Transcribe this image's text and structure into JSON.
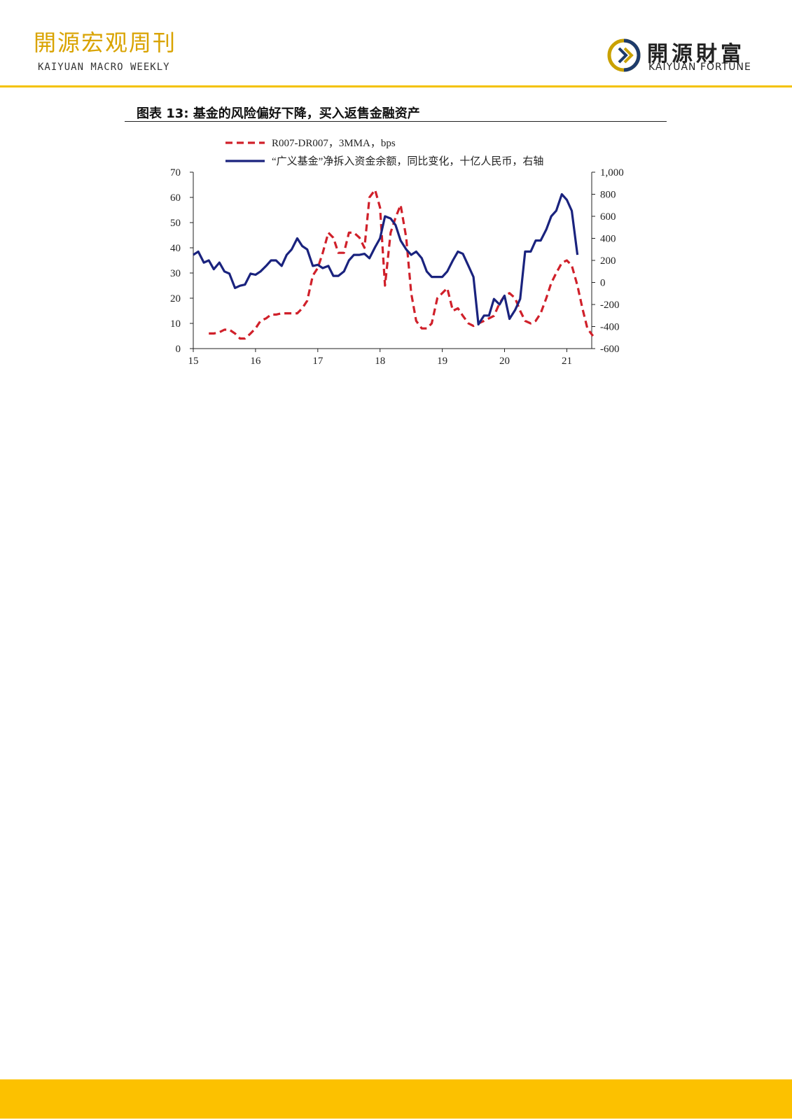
{
  "header": {
    "title": "開源宏观周刊",
    "subtitle": "KAIYUAN MACRO WEEKLY"
  },
  "logo": {
    "name_cn": "開源財富",
    "name_en": "KAIYUAN FORTUNE"
  },
  "figure": {
    "title": "图表 13: 基金的风险偏好下降，买入返售金融资产"
  },
  "colors": {
    "accent": "#f4c200",
    "footer": "#fcc100",
    "title_gold": "#d9a300",
    "series_red": "#d0202a",
    "series_navy": "#1a237e"
  },
  "chart_data": {
    "type": "line",
    "x_ticks": [
      "15",
      "16",
      "17",
      "18",
      "19",
      "20",
      "21"
    ],
    "y_left_ticks": [
      "70",
      "60",
      "50",
      "40",
      "30",
      "20",
      "10",
      "0"
    ],
    "y_right_ticks": [
      "1,000",
      "800",
      "600",
      "400",
      "200",
      "0",
      "-200",
      "-400",
      "-600"
    ],
    "ylim_left": [
      0,
      70
    ],
    "ylim_right": [
      -600,
      1000
    ],
    "xlim": [
      15,
      21.4
    ],
    "legend_placement": "top",
    "series": [
      {
        "name": "R007-DR007，3MMA，bps",
        "axis": "left",
        "style": "dashed",
        "color": "#d0202a",
        "x": [
          15.25,
          15.33,
          15.42,
          15.5,
          15.58,
          15.67,
          15.75,
          15.83,
          15.92,
          16.0,
          16.08,
          16.17,
          16.25,
          16.33,
          16.42,
          16.5,
          16.58,
          16.67,
          16.75,
          16.83,
          16.92,
          17.0,
          17.08,
          17.17,
          17.25,
          17.33,
          17.42,
          17.5,
          17.58,
          17.67,
          17.75,
          17.83,
          17.92,
          18.0,
          18.08,
          18.17,
          18.25,
          18.33,
          18.42,
          18.5,
          18.58,
          18.67,
          18.75,
          18.83,
          18.92,
          19.0,
          19.08,
          19.17,
          19.25,
          19.33,
          19.42,
          19.5,
          19.58,
          19.67,
          19.75,
          19.83,
          19.92,
          20.0,
          20.08,
          20.17,
          20.25,
          20.33,
          20.42,
          20.5,
          20.58,
          20.67,
          20.75,
          20.83,
          20.92,
          21.0,
          21.08,
          21.17,
          21.25,
          21.33,
          21.42
        ],
        "y": [
          6,
          6,
          6.5,
          7.5,
          7.5,
          6,
          4,
          4,
          6,
          8,
          11,
          12,
          13.5,
          13.5,
          14,
          14,
          14,
          14,
          16,
          19,
          29,
          32,
          38,
          46,
          44,
          38,
          38,
          46,
          46,
          44,
          40,
          60,
          63,
          56,
          25,
          46,
          52,
          57,
          44,
          22,
          11,
          8,
          8,
          10,
          20,
          22,
          24,
          15,
          16,
          13,
          10,
          9,
          10,
          11,
          12,
          13,
          18,
          21,
          22,
          20,
          15,
          11,
          10,
          11,
          14,
          20,
          26,
          30,
          34,
          35,
          33,
          25,
          16,
          8,
          5
        ],
        "ylim": [
          0,
          70
        ]
      },
      {
        "name": "“广义基金”净拆入资金余额，同比变化，十亿人民币，右轴",
        "axis": "right",
        "style": "solid",
        "color": "#1a237e",
        "x": [
          15.0,
          15.08,
          15.17,
          15.25,
          15.33,
          15.42,
          15.5,
          15.58,
          15.67,
          15.75,
          15.83,
          15.92,
          16.0,
          16.08,
          16.17,
          16.25,
          16.33,
          16.42,
          16.5,
          16.58,
          16.67,
          16.75,
          16.83,
          16.92,
          17.0,
          17.08,
          17.17,
          17.25,
          17.33,
          17.42,
          17.5,
          17.58,
          17.67,
          17.75,
          17.83,
          17.92,
          18.0,
          18.08,
          18.17,
          18.25,
          18.33,
          18.42,
          18.5,
          18.58,
          18.67,
          18.75,
          18.83,
          18.92,
          19.0,
          19.08,
          19.17,
          19.25,
          19.33,
          19.42,
          19.5,
          19.58,
          19.67,
          19.75,
          19.83,
          19.92,
          20.0,
          20.08,
          20.17,
          20.25,
          20.33,
          20.42,
          20.5,
          20.58,
          20.67,
          20.75,
          20.83,
          20.92,
          21.0,
          21.08,
          21.17
        ],
        "y": [
          250,
          280,
          180,
          200,
          120,
          180,
          100,
          80,
          -50,
          -30,
          -20,
          80,
          70,
          100,
          150,
          200,
          200,
          150,
          250,
          300,
          400,
          330,
          300,
          150,
          160,
          130,
          150,
          60,
          60,
          100,
          200,
          250,
          250,
          260,
          220,
          320,
          400,
          600,
          580,
          520,
          380,
          300,
          250,
          280,
          220,
          100,
          50,
          50,
          50,
          100,
          200,
          280,
          260,
          150,
          50,
          -380,
          -300,
          -300,
          -150,
          -200,
          -120,
          -330,
          -250,
          -150,
          280,
          280,
          380,
          380,
          480,
          600,
          650,
          800,
          750,
          650,
          250
        ]
      }
    ]
  }
}
